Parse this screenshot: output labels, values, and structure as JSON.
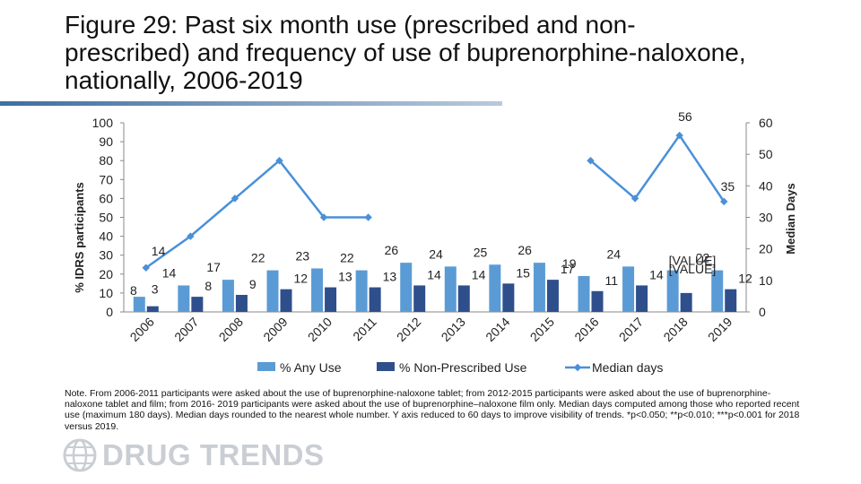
{
  "title": "Figure 29: Past six month use (prescribed and non-prescribed) and frequency of use of buprenorphine-naloxone, nationally, 2006-2019",
  "note": "Note. From 2006-2011 participants were asked about the use of buprenorphine-naloxone tablet; from 2012-2015 participants were asked about the use of buprenorphine-naloxone tablet and film; from 2016- 2019 participants were asked about the use of buprenorphine–naloxone film only. Median days computed among those who reported recent use (maximum 180 days). Median days rounded to the nearest whole number. Y axis reduced to 60 days to improve visibility of trends.  *p<0.050; **p<0.010; ***p<0.001 for 2018 versus 2019.",
  "logo_text": "DRUG TRENDS",
  "colors": {
    "any_use": "#5b9bd5",
    "non_prescribed": "#2e4f8c",
    "median_line": "#4a90d9"
  },
  "chart_data": {
    "type": "bar+line",
    "categories": [
      "2006",
      "2007",
      "2008",
      "2009",
      "2010",
      "2011",
      "2012",
      "2013",
      "2014",
      "2015",
      "2016",
      "2017",
      "2018",
      "2019"
    ],
    "ylabel": "% IDRS participants",
    "ylim": [
      0,
      100
    ],
    "yticks": [
      0,
      10,
      20,
      30,
      40,
      50,
      60,
      70,
      80,
      90,
      100
    ],
    "y2label": "Median Days",
    "y2lim": [
      0,
      60
    ],
    "y2ticks": [
      0,
      10,
      20,
      30,
      40,
      50,
      60
    ],
    "series": [
      {
        "name": "% Any Use",
        "axis": "left",
        "kind": "bar",
        "values": [
          8,
          14,
          17,
          22,
          23,
          22,
          26,
          24,
          25,
          26,
          19,
          24,
          22,
          22
        ],
        "labels": [
          "8",
          "14",
          "17",
          "22",
          "23",
          "22",
          "26",
          "24",
          "25",
          "26",
          "19",
          "24",
          "[VALUE]",
          "22"
        ]
      },
      {
        "name": "% Non-Prescribed Use",
        "axis": "left",
        "kind": "bar",
        "values": [
          3,
          8,
          9,
          12,
          13,
          13,
          14,
          14,
          15,
          17,
          11,
          14,
          10,
          12
        ],
        "labels": [
          "3",
          "8",
          "9",
          "12",
          "13",
          "13",
          "14",
          "14",
          "15",
          "17",
          "11",
          "14",
          "[VALUE]",
          "12"
        ]
      },
      {
        "name": "Median days",
        "axis": "right",
        "kind": "line",
        "values": [
          14,
          24,
          36,
          48,
          30,
          30,
          null,
          null,
          null,
          null,
          48,
          36,
          56,
          35
        ],
        "labels": [
          "14",
          "",
          "",
          "",
          "",
          "",
          "",
          "",
          "",
          "",
          "",
          "",
          "56",
          "35"
        ]
      }
    ],
    "legend_position": "bottom"
  }
}
